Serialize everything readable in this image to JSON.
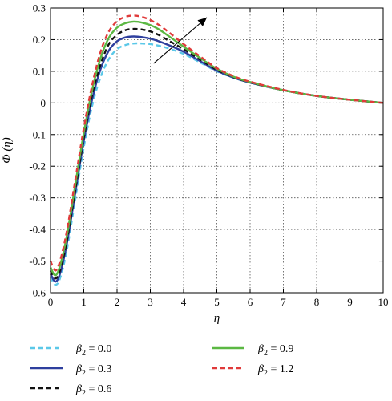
{
  "chart_data": {
    "type": "line",
    "xlabel": "η",
    "ylabel": "Φ (η)",
    "xlim": [
      0,
      10
    ],
    "ylim": [
      -0.6,
      0.3
    ],
    "xticks": [
      "0",
      "1",
      "2",
      "3",
      "4",
      "5",
      "6",
      "7",
      "8",
      "9",
      "10"
    ],
    "yticks": [
      "0.3",
      "0.2",
      "0.1",
      "0",
      "-0.1",
      "-0.2",
      "-0.3",
      "-0.4",
      "-0.5",
      "-0.6"
    ],
    "grid": true,
    "legend_position": "below",
    "annotation": "arrow pointing up-right indicating increasing β2",
    "x": [
      0,
      0.15,
      0.3,
      0.5,
      0.75,
      1.0,
      1.25,
      1.5,
      1.75,
      2.0,
      2.25,
      2.5,
      2.75,
      3.0,
      3.25,
      3.5,
      4.0,
      4.5,
      5.0,
      5.5,
      6.0,
      7.0,
      8.0,
      9.0,
      10.0
    ],
    "series": [
      {
        "name": "β2 = 0.0",
        "label_prefix": "β",
        "label_sub": "2",
        "label_suffix": " = 0.0",
        "color": "#5bc8e8",
        "style": "dashed",
        "values": [
          -0.55,
          -0.575,
          -0.55,
          -0.46,
          -0.3,
          -0.14,
          -0.01,
          0.08,
          0.138,
          0.17,
          0.183,
          0.188,
          0.188,
          0.186,
          0.181,
          0.174,
          0.155,
          0.128,
          0.1,
          0.08,
          0.064,
          0.04,
          0.022,
          0.01,
          0.0
        ]
      },
      {
        "name": "β2 = 0.3",
        "label_prefix": "β",
        "label_sub": "2",
        "label_suffix": " = 0.3",
        "color": "#2e3f9e",
        "style": "solid",
        "values": [
          -0.54,
          -0.565,
          -0.535,
          -0.44,
          -0.28,
          -0.12,
          0.01,
          0.105,
          0.165,
          0.195,
          0.207,
          0.21,
          0.208,
          0.203,
          0.195,
          0.185,
          0.162,
          0.132,
          0.102,
          0.08,
          0.064,
          0.04,
          0.022,
          0.01,
          0.0
        ]
      },
      {
        "name": "β2 = 0.6",
        "label_prefix": "β",
        "label_sub": "2",
        "label_suffix": " = 0.6",
        "color": "#111111",
        "style": "dashed",
        "values": [
          -0.53,
          -0.555,
          -0.525,
          -0.43,
          -0.27,
          -0.11,
          0.025,
          0.12,
          0.185,
          0.215,
          0.23,
          0.234,
          0.232,
          0.226,
          0.215,
          0.2,
          0.17,
          0.137,
          0.105,
          0.082,
          0.065,
          0.04,
          0.022,
          0.01,
          0.0
        ]
      },
      {
        "name": "β2 = 0.9",
        "label_prefix": "β",
        "label_sub": "2",
        "label_suffix": " = 0.9",
        "color": "#5bb843",
        "style": "solid",
        "values": [
          -0.52,
          -0.545,
          -0.51,
          -0.415,
          -0.255,
          -0.095,
          0.04,
          0.14,
          0.205,
          0.238,
          0.252,
          0.257,
          0.254,
          0.246,
          0.233,
          0.215,
          0.178,
          0.142,
          0.108,
          0.083,
          0.066,
          0.04,
          0.022,
          0.01,
          0.0
        ]
      },
      {
        "name": "β2 = 1.2",
        "label_prefix": "β",
        "label_sub": "2",
        "label_suffix": " = 1.2",
        "color": "#e03a3a",
        "style": "dashed",
        "values": [
          -0.5,
          -0.53,
          -0.495,
          -0.4,
          -0.24,
          -0.08,
          0.055,
          0.16,
          0.225,
          0.258,
          0.272,
          0.276,
          0.272,
          0.262,
          0.247,
          0.228,
          0.186,
          0.147,
          0.11,
          0.085,
          0.067,
          0.041,
          0.022,
          0.01,
          0.0
        ]
      }
    ]
  }
}
